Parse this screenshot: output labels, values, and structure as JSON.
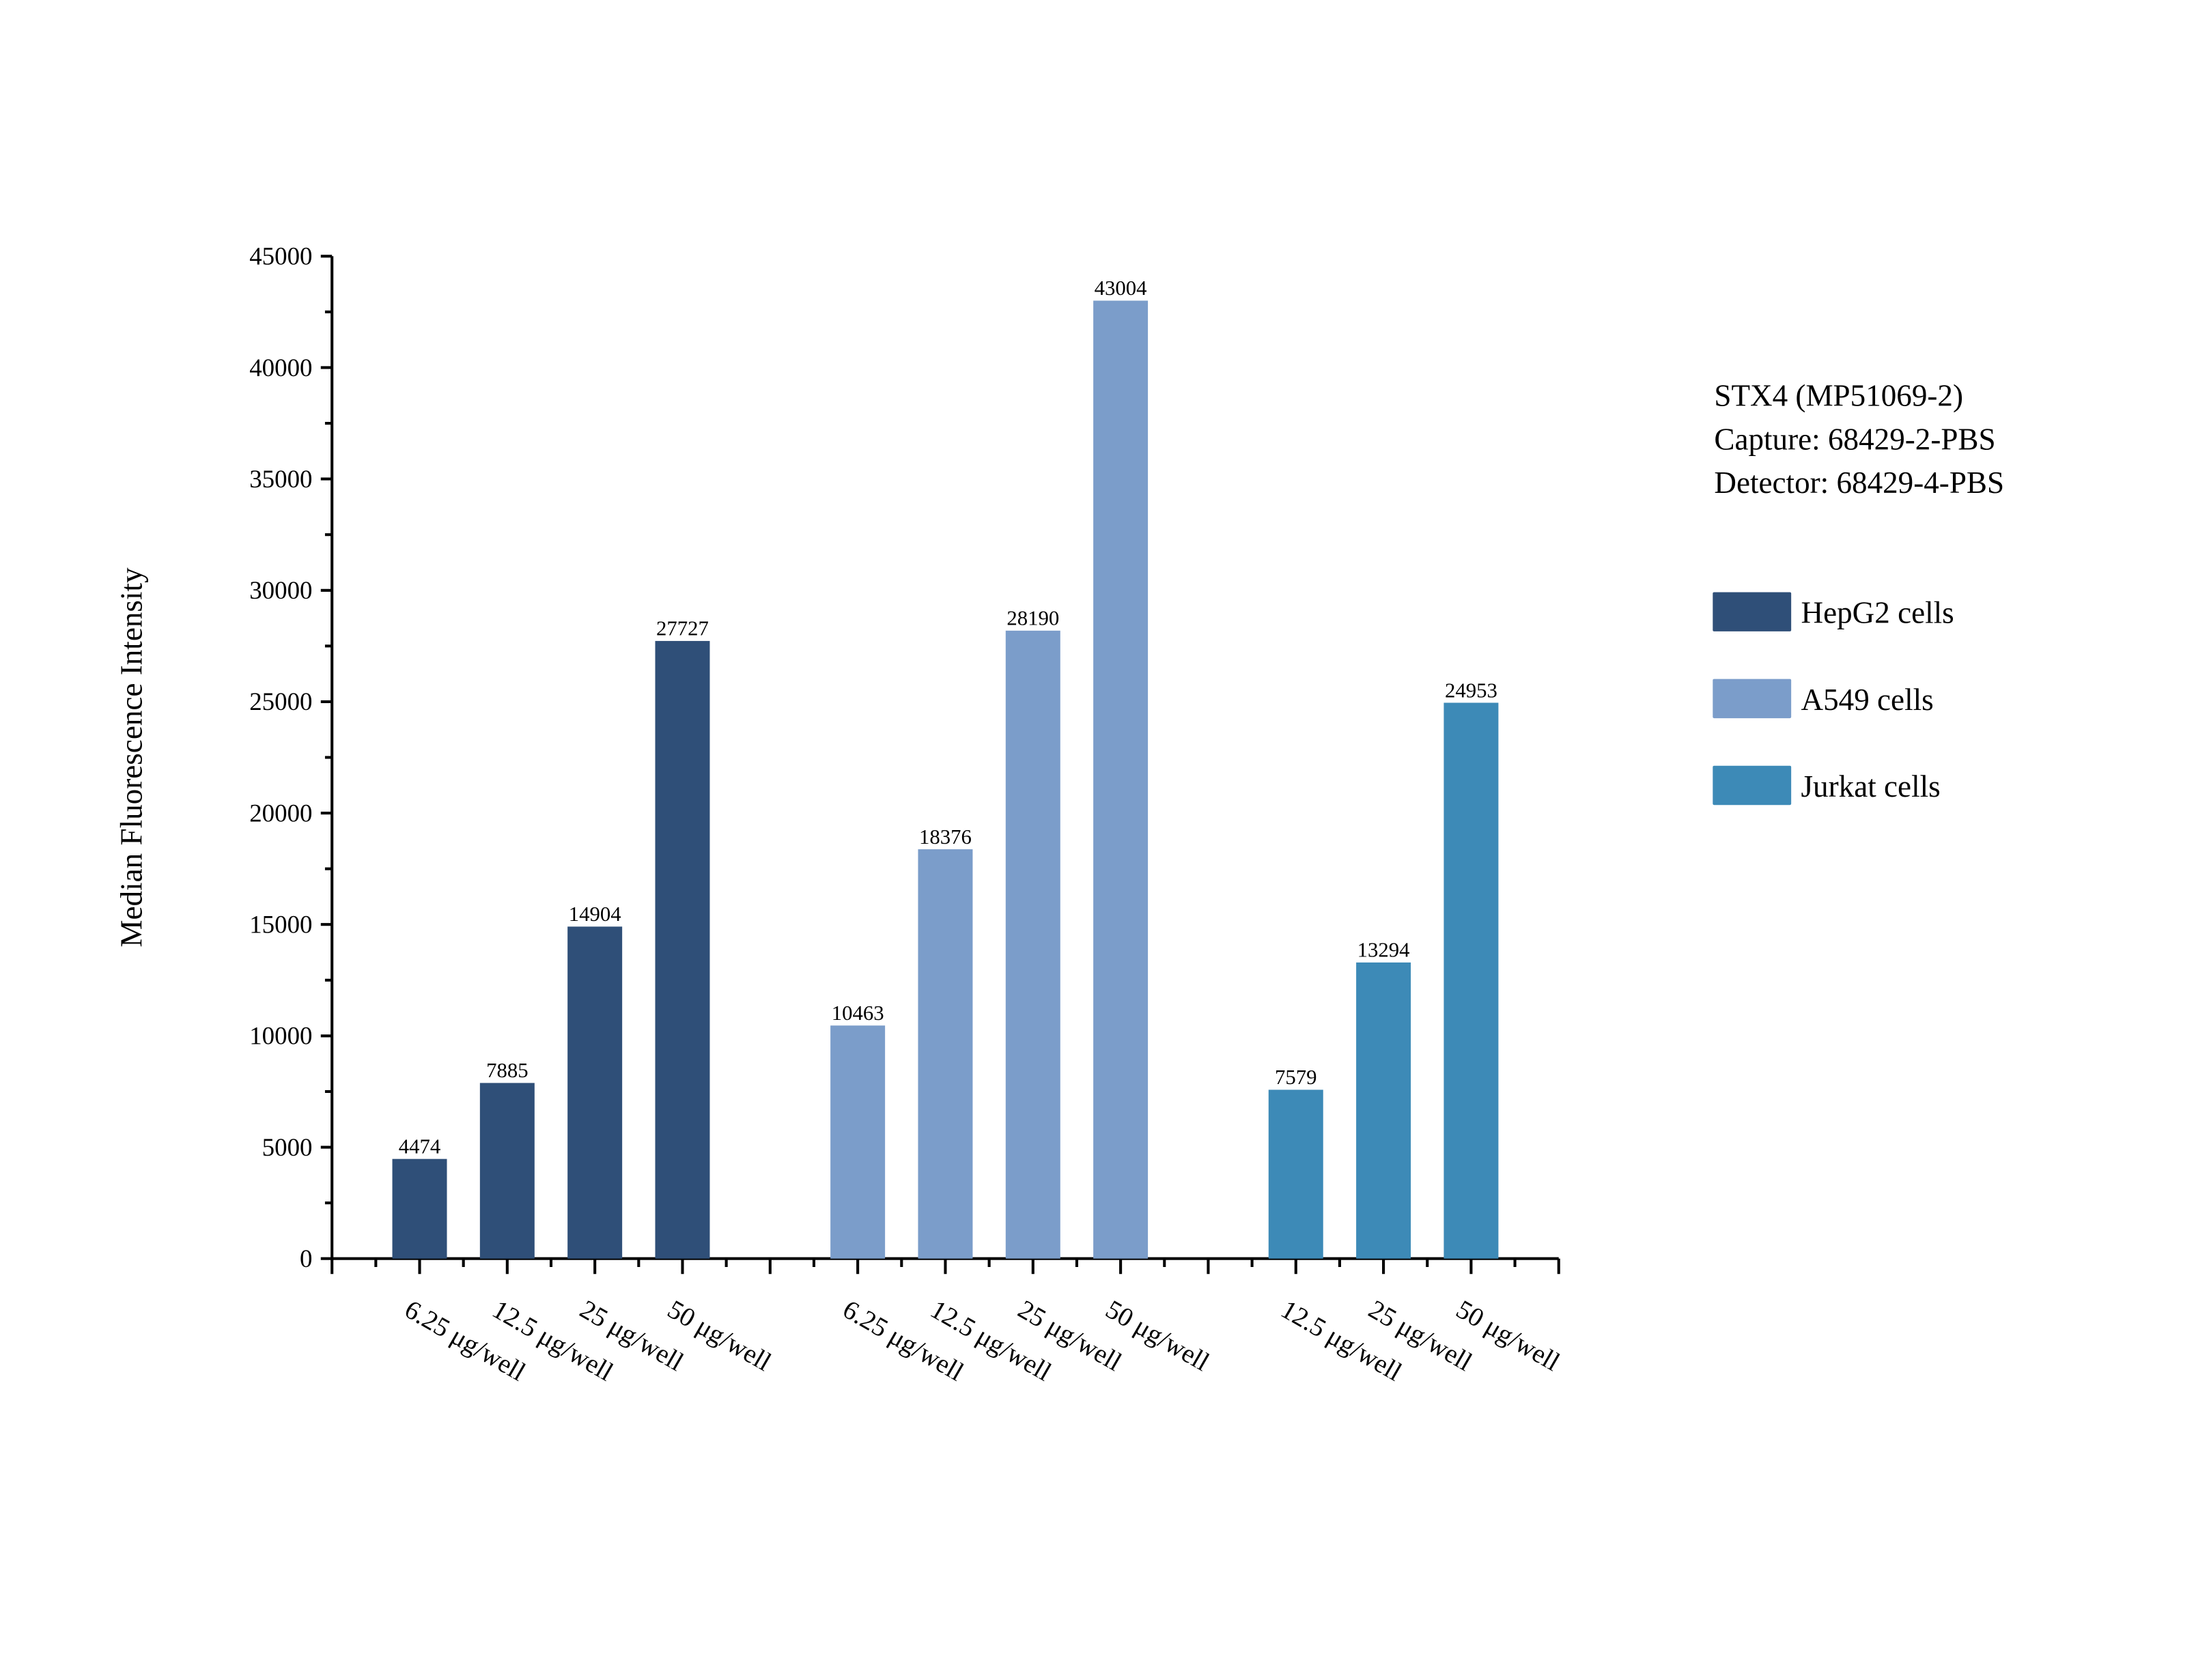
{
  "chart_data": {
    "type": "bar",
    "title": "",
    "ylabel": "Median Fluorescence Intensity",
    "xlabel": "",
    "ylim": [
      0,
      45000
    ],
    "yticks": [
      "0",
      "5000",
      "10000",
      "15000",
      "20000",
      "25000",
      "30000",
      "35000",
      "40000",
      "45000"
    ],
    "grid": false,
    "legend_position": "right",
    "annotation": [
      "STX4 (MP51069-2)",
      "Capture: 68429-2-PBS",
      "Detector: 68429-4-PBS"
    ],
    "series": [
      {
        "name": "HepG2 cells",
        "color": "#2f4f78",
        "categories": [
          "6.25 μg/well",
          "12.5 μg/well",
          "25 μg/well",
          "50 μg/well"
        ],
        "values": [
          4474,
          7885,
          14904,
          27727
        ]
      },
      {
        "name": "A549 cells",
        "color": "#7b9dca",
        "categories": [
          "6.25 μg/well",
          "12.5 μg/well",
          "25 μg/well",
          "50 μg/well"
        ],
        "values": [
          10463,
          18376,
          28190,
          43004
        ]
      },
      {
        "name": "Jurkat cells",
        "color": "#3d8ab7",
        "categories": [
          "12.5 μg/well",
          "25 μg/well",
          "50 μg/well"
        ],
        "values": [
          7579,
          13294,
          24953
        ]
      }
    ]
  }
}
